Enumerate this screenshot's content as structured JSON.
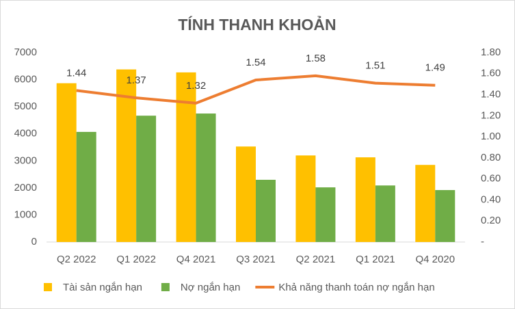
{
  "chart_data": {
    "type": "bar-line",
    "title": "TÍNH THANH KHOẢN",
    "categories": [
      "Q2 2022",
      "Q1 2022",
      "Q4 2021",
      "Q3 2021",
      "Q2 2021",
      "Q1 2021",
      "Q4 2020"
    ],
    "series": [
      {
        "name": "Tài sản ngắn hạn",
        "type": "bar",
        "color": "#FFC000",
        "values": [
          5870,
          6380,
          6270,
          3530,
          3200,
          3130,
          2850
        ]
      },
      {
        "name": "Nợ ngắn hạn",
        "type": "bar",
        "color": "#70AD47",
        "values": [
          4070,
          4670,
          4750,
          2300,
          2020,
          2090,
          1920
        ]
      },
      {
        "name": "Khả năng thanh toán nợ ngắn hạn",
        "type": "line",
        "axis": "y2",
        "color": "#ED7D31",
        "values": [
          1.44,
          1.37,
          1.32,
          1.54,
          1.58,
          1.51,
          1.49
        ]
      }
    ],
    "ylim": [
      0,
      7000
    ],
    "yticks": [
      0,
      1000,
      2000,
      3000,
      4000,
      5000,
      6000,
      7000
    ],
    "y2lim": [
      0,
      1.8
    ],
    "y2ticks": [
      {
        "value": 0,
        "label": "-"
      },
      {
        "value": 0.2,
        "label": "0.20"
      },
      {
        "value": 0.4,
        "label": "0.40"
      },
      {
        "value": 0.6,
        "label": "0.60"
      },
      {
        "value": 0.8,
        "label": "0.80"
      },
      {
        "value": 1.0,
        "label": "1.00"
      },
      {
        "value": 1.2,
        "label": "1.20"
      },
      {
        "value": 1.4,
        "label": "1.40"
      },
      {
        "value": 1.6,
        "label": "1.60"
      },
      {
        "value": 1.8,
        "label": "1.80"
      }
    ],
    "legend": "bottom"
  }
}
